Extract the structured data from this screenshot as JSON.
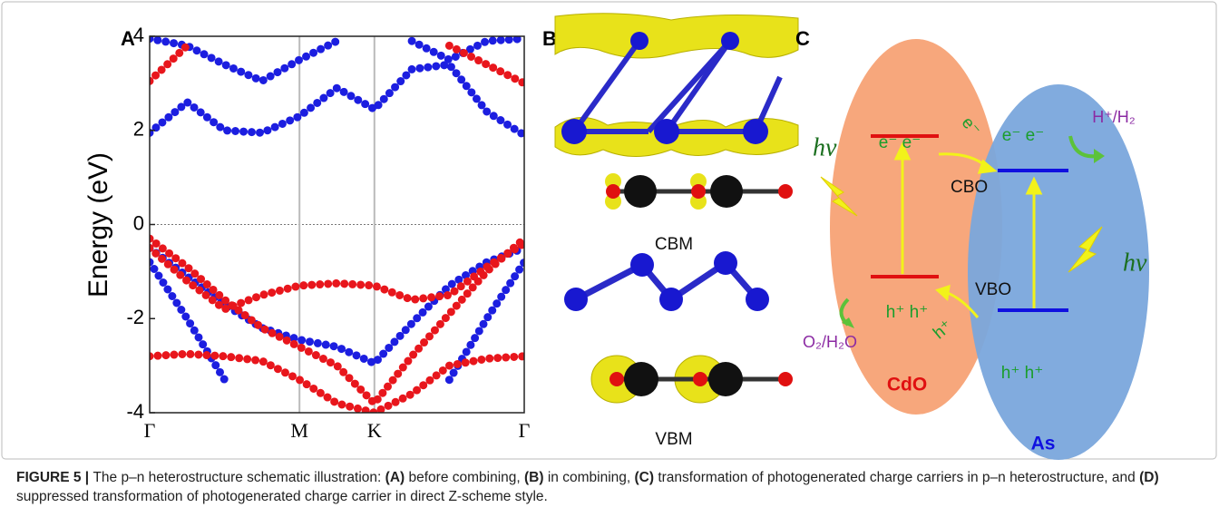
{
  "chart_data": {
    "type": "band",
    "panel_label": "A",
    "y_label": "Energy (eV)",
    "xlim": [
      0,
      2.5
    ],
    "ylim": [
      -4,
      4
    ],
    "yticks": [
      -4,
      -2,
      0,
      2,
      4
    ],
    "xticks": [
      {
        "value": 0,
        "label": "Γ"
      },
      {
        "value": 1,
        "label": "M"
      },
      {
        "value": 1.5,
        "label": "K"
      },
      {
        "value": 2.5,
        "label": "Γ"
      }
    ],
    "xgrid": true,
    "hline": 0,
    "x": [
      0,
      0.25,
      0.5,
      0.75,
      1,
      1.25,
      1.5,
      1.75,
      2,
      2.25,
      2.5
    ],
    "series": [
      {
        "color": "#1c1ee0",
        "values": [
          1.95,
          2.6,
          2.0,
          1.95,
          2.3,
          2.9,
          2.45,
          3.3,
          3.4,
          2.4,
          1.9
        ]
      },
      {
        "color": "#1c1ee0",
        "values": [
          3.95,
          3.8,
          3.4,
          3.05,
          3.5,
          3.9,
          null,
          3.9,
          3.5,
          3.9,
          3.95
        ]
      },
      {
        "color": "#1c1ee0",
        "values": [
          -0.5,
          -1.1,
          -1.7,
          -2.2,
          -2.45,
          -2.6,
          -2.95,
          -2.1,
          -1.3,
          -0.8,
          -0.5
        ]
      },
      {
        "color": "#1c1ee0",
        "values": [
          -0.8,
          -2.0,
          -3.3,
          null,
          null,
          null,
          null,
          null,
          -3.3,
          -2.0,
          -0.8
        ]
      },
      {
        "color": "#e8161c",
        "values": [
          3.05,
          3.8,
          null,
          null,
          null,
          null,
          null,
          null,
          3.8,
          3.4,
          3.0
        ]
      },
      {
        "color": "#e8161c",
        "values": [
          -0.3,
          -0.9,
          -1.6,
          -2.2,
          -2.6,
          -3.0,
          -3.8,
          -2.8,
          -1.9,
          -1.0,
          -0.3
        ]
      },
      {
        "color": "#e8161c",
        "values": [
          -0.5,
          -1.2,
          -1.8,
          -1.5,
          -1.3,
          -1.25,
          -1.3,
          -1.6,
          -1.5,
          -0.9,
          -0.4
        ]
      },
      {
        "color": "#e8161c",
        "values": [
          -2.8,
          -2.75,
          -2.8,
          -2.9,
          -3.3,
          -3.8,
          -4.0,
          -3.6,
          -3.0,
          -2.85,
          -2.8
        ]
      }
    ]
  },
  "panel_b": {
    "label": "B",
    "cbm": "CBM",
    "vbm": "VBM"
  },
  "panel_c": {
    "label": "C",
    "electrons_left": "e⁻ e⁻",
    "electrons_right": "e⁻ e⁻",
    "electron_transfer": "e⁻",
    "hv_left": "hv",
    "hv_right": "hv",
    "h_couple": "H⁺/H₂",
    "o_couple": "O₂/H₂O",
    "cbo": "CBO",
    "vbo": "VBO",
    "holes_left": "h⁺ h⁺",
    "holes_right": "h⁺ h⁺",
    "hole_transfer": "h⁺",
    "left_material": "CdO",
    "right_material": "As"
  },
  "caption": [
    {
      "text": "FIGURE 5 | ",
      "bold": true
    },
    {
      "text": "The p–n heterostructure schematic illustration: ",
      "bold": false
    },
    {
      "text": "(A)",
      "bold": true
    },
    {
      "text": " before combining, ",
      "bold": false
    },
    {
      "text": "(B)",
      "bold": true
    },
    {
      "text": " in combining, ",
      "bold": false
    },
    {
      "text": "(C)",
      "bold": true
    },
    {
      "text": " transformation of photogenerated charge carriers in p–n heterostructure, and ",
      "bold": false
    },
    {
      "text": "(D)",
      "bold": true
    },
    {
      "text": " suppressed transformation of photogenerated charge carrier in direct Z-scheme style.",
      "bold": false
    }
  ]
}
